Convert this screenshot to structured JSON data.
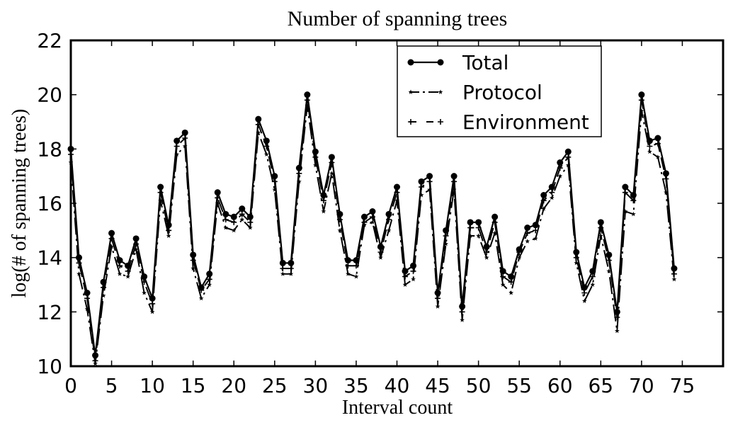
{
  "chart_data": {
    "type": "line",
    "title": "Number of spanning trees",
    "xlabel": "Interval count",
    "ylabel": "log(# of spanning trees)",
    "xlim": [
      0,
      80
    ],
    "ylim": [
      10,
      22
    ],
    "x_ticks": [
      0,
      5,
      10,
      15,
      20,
      25,
      30,
      35,
      40,
      45,
      50,
      55,
      60,
      65,
      70,
      75
    ],
    "y_ticks": [
      10,
      12,
      14,
      16,
      18,
      20,
      22
    ],
    "grid": false,
    "legend_position": "top-right",
    "colors": {
      "line": "#000000",
      "axis": "#000000",
      "background": "#ffffff"
    },
    "series": [
      {
        "name": "Total",
        "style": "solid-circle",
        "x": [
          0,
          1,
          2,
          3,
          4,
          5,
          6,
          7,
          8,
          9,
          10,
          11,
          12,
          13,
          14,
          15,
          16,
          17,
          18,
          19,
          20,
          21,
          22,
          23,
          24,
          25,
          26,
          27,
          28,
          29,
          30,
          31,
          32,
          33,
          34,
          35,
          36,
          37,
          38,
          39,
          40,
          41,
          42,
          43,
          44,
          45,
          46,
          47,
          48,
          49,
          50,
          51,
          52,
          53,
          54,
          55,
          56,
          57,
          58,
          59,
          60,
          61,
          62,
          63,
          64,
          65,
          66,
          67,
          68,
          69,
          70,
          71,
          72,
          73,
          74
        ],
        "values": [
          18.0,
          14.0,
          12.7,
          10.4,
          13.1,
          14.9,
          13.9,
          13.7,
          14.7,
          13.3,
          12.5,
          16.6,
          15.2,
          18.3,
          18.6,
          14.1,
          12.9,
          13.4,
          16.4,
          15.6,
          15.5,
          15.8,
          15.5,
          19.1,
          18.3,
          17.0,
          13.8,
          13.8,
          17.3,
          20.0,
          17.9,
          16.3,
          17.7,
          15.6,
          13.9,
          13.9,
          15.5,
          15.7,
          14.4,
          15.6,
          16.6,
          13.5,
          13.7,
          16.8,
          17.0,
          12.7,
          15.0,
          17.0,
          12.2,
          15.3,
          15.3,
          14.4,
          15.5,
          13.5,
          13.3,
          14.3,
          15.1,
          15.2,
          16.3,
          16.6,
          17.5,
          17.9,
          14.2,
          12.9,
          13.5,
          15.3,
          14.1,
          12.0,
          16.6,
          16.3,
          20.0,
          18.3,
          18.4,
          17.1,
          13.6
        ]
      },
      {
        "name": "Protocol",
        "style": "dash-dot-star",
        "x": [
          0,
          1,
          2,
          3,
          4,
          5,
          6,
          7,
          8,
          9,
          10,
          11,
          12,
          13,
          14,
          15,
          16,
          17,
          18,
          19,
          20,
          21,
          22,
          23,
          24,
          25,
          26,
          27,
          28,
          29,
          30,
          31,
          32,
          33,
          34,
          35,
          36,
          37,
          38,
          39,
          40,
          41,
          42,
          43,
          44,
          45,
          46,
          47,
          48,
          49,
          50,
          51,
          52,
          53,
          54,
          55,
          56,
          57,
          58,
          59,
          60,
          61,
          62,
          63,
          64,
          65,
          66,
          67,
          68,
          69,
          70,
          71,
          72,
          73,
          74
        ],
        "values": [
          17.5,
          13.4,
          12.1,
          10.1,
          12.6,
          14.4,
          13.4,
          13.3,
          14.3,
          12.7,
          12.0,
          16.1,
          14.8,
          17.8,
          18.1,
          13.6,
          12.5,
          13.0,
          16.0,
          15.1,
          15.0,
          15.4,
          15.1,
          18.6,
          17.8,
          16.5,
          13.4,
          13.4,
          16.8,
          19.6,
          17.4,
          15.7,
          17.1,
          15.0,
          13.4,
          13.3,
          15.2,
          15.3,
          14.0,
          15.0,
          16.1,
          13.0,
          13.2,
          16.3,
          16.5,
          12.2,
          14.5,
          16.5,
          11.7,
          14.8,
          14.8,
          14.0,
          14.9,
          13.0,
          12.7,
          14.0,
          14.6,
          14.7,
          15.8,
          16.2,
          17.0,
          17.4,
          13.8,
          12.4,
          13.0,
          14.8,
          13.5,
          11.3,
          15.7,
          15.6,
          19.4,
          17.9,
          17.7,
          16.4,
          13.2
        ]
      },
      {
        "name": "Environment",
        "style": "dash-plus",
        "x": [
          0,
          1,
          2,
          3,
          4,
          5,
          6,
          7,
          8,
          9,
          10,
          11,
          12,
          13,
          14,
          15,
          16,
          17,
          18,
          19,
          20,
          21,
          22,
          23,
          24,
          25,
          26,
          27,
          28,
          29,
          30,
          31,
          32,
          33,
          34,
          35,
          36,
          37,
          38,
          39,
          40,
          41,
          42,
          43,
          44,
          45,
          46,
          47,
          48,
          49,
          50,
          51,
          52,
          53,
          54,
          55,
          56,
          57,
          58,
          59,
          60,
          61,
          62,
          63,
          64,
          65,
          66,
          67,
          68,
          69,
          70,
          71,
          72,
          73,
          74
        ],
        "values": [
          17.8,
          13.8,
          12.5,
          10.2,
          12.9,
          14.7,
          13.7,
          13.5,
          14.5,
          13.1,
          12.3,
          16.4,
          15.0,
          18.1,
          18.4,
          13.9,
          12.8,
          13.2,
          16.2,
          15.4,
          15.3,
          15.6,
          15.3,
          18.9,
          18.1,
          16.8,
          13.6,
          13.6,
          17.1,
          19.8,
          17.7,
          16.1,
          17.5,
          15.4,
          13.7,
          13.7,
          15.3,
          15.5,
          14.2,
          15.4,
          16.4,
          13.3,
          13.5,
          16.6,
          16.8,
          12.5,
          14.8,
          16.8,
          12.0,
          15.1,
          15.1,
          14.2,
          15.3,
          13.3,
          13.1,
          14.2,
          14.9,
          15.0,
          16.1,
          16.4,
          17.3,
          17.7,
          14.0,
          12.7,
          13.3,
          15.1,
          13.9,
          11.8,
          16.4,
          16.1,
          19.8,
          18.1,
          18.2,
          16.9,
          13.4
        ]
      }
    ]
  }
}
